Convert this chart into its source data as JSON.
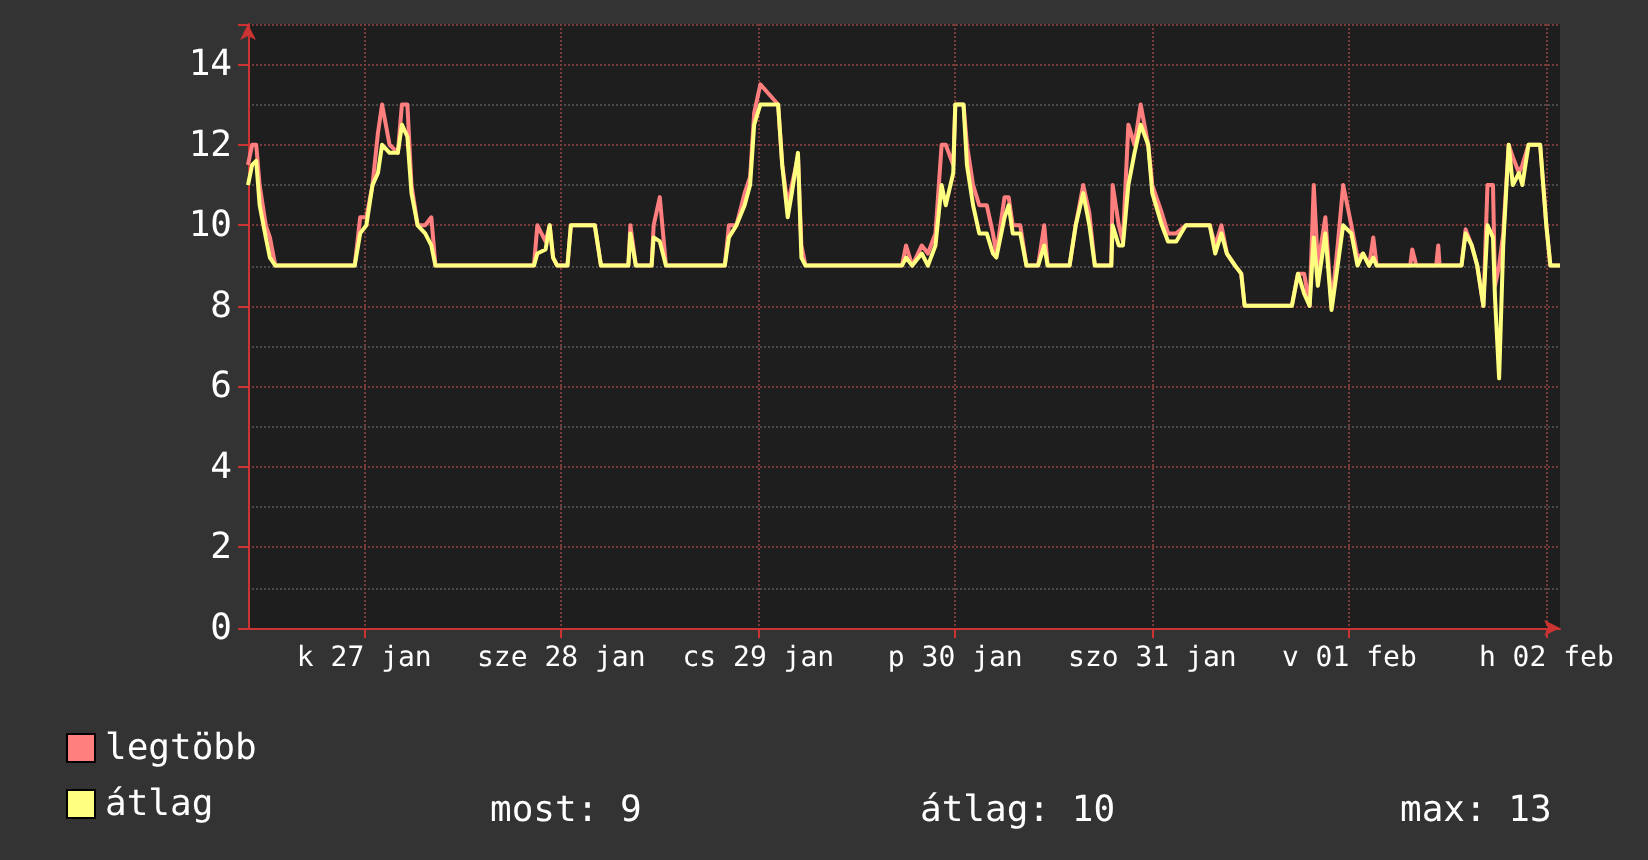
{
  "chart_data": {
    "type": "line",
    "legend": "bottom",
    "grid": true,
    "marker": "none",
    "line_style": "solid",
    "xlim": [
      "--01-26T09:50",
      "--02-02T01:40"
    ],
    "ylim": [
      0,
      15
    ],
    "yticks": [
      0,
      2,
      4,
      6,
      8,
      10,
      12,
      14
    ],
    "xticks": [
      {
        "value": "--01-27",
        "label": "k 27 jan"
      },
      {
        "value": "--01-28",
        "label": "sze 28 jan"
      },
      {
        "value": "--01-29",
        "label": "cs 29 jan"
      },
      {
        "value": "--01-30",
        "label": "p 30 jan"
      },
      {
        "value": "--01-31",
        "label": "szo 31 jan"
      },
      {
        "value": "--02-01",
        "label": "v 01 feb"
      },
      {
        "value": "--02-02",
        "label": "h 02 feb"
      }
    ],
    "x": [
      "--01-26T09:50",
      "--01-26T10:20",
      "--01-26T10:50",
      "--01-26T11:15",
      "--01-26T12:00",
      "--01-26T12:30",
      "--01-26T13:10",
      "--01-26T22:50",
      "--01-26T23:30",
      "--01-27T00:15",
      "--01-27T01:00",
      "--01-27T01:40",
      "--01-27T02:10",
      "--01-27T03:05",
      "--01-27T04:05",
      "--01-27T04:35",
      "--01-27T05:15",
      "--01-27T05:45",
      "--01-27T06:30",
      "--01-27T07:25",
      "--01-27T08:10",
      "--01-27T08:40",
      "--01-27T20:40",
      "--01-27T21:05",
      "--01-27T22:05",
      "--01-27T22:35",
      "--01-27T23:00",
      "--01-27T23:30",
      "--01-28T00:45",
      "--01-28T01:10",
      "--01-28T04:05",
      "--01-28T04:50",
      "--01-28T08:10",
      "--01-28T08:25",
      "--01-28T09:05",
      "--01-28T11:00",
      "--01-28T11:15",
      "--01-28T12:00",
      "--01-28T12:45",
      "--01-28T19:55",
      "--01-28T20:25",
      "--01-28T21:20",
      "--01-28T22:20",
      "--01-28T23:00",
      "--01-28T23:30",
      "--01-29T00:15",
      "--01-29T02:25",
      "--01-29T02:55",
      "--01-29T03:35",
      "--01-29T04:05",
      "--01-29T04:50",
      "--01-29T05:15",
      "--01-29T05:45",
      "--01-29T16:05",
      "--01-29T17:30",
      "--01-29T18:00",
      "--01-29T18:45",
      "--01-29T19:55",
      "--01-29T20:40",
      "--01-29T21:35",
      "--01-29T22:20",
      "--01-29T22:50",
      "--01-29T23:45",
      "--01-30T00:00",
      "--01-30T01:00",
      "--01-30T01:25",
      "--01-30T02:10",
      "--01-30T02:55",
      "--01-30T03:50",
      "--01-30T04:35",
      "--01-30T05:00",
      "--01-30T06:00",
      "--01-30T06:30",
      "--01-30T07:00",
      "--01-30T07:55",
      "--01-30T08:40",
      "--01-30T10:05",
      "--01-30T10:50",
      "--01-30T11:15",
      "--01-30T13:55",
      "--01-30T14:40",
      "--01-30T15:35",
      "--01-30T16:20",
      "--01-30T17:00",
      "--01-30T19:00",
      "--01-30T19:10",
      "--01-30T19:55",
      "--01-30T20:25",
      "--01-30T21:05",
      "--01-30T21:50",
      "--01-30T22:35",
      "--01-30T23:30",
      "--01-31T00:00",
      "--01-31T01:10",
      "--01-31T01:55",
      "--01-31T02:55",
      "--01-31T04:05",
      "--01-31T07:00",
      "--01-31T07:40",
      "--01-31T08:25",
      "--01-31T09:05",
      "--01-31T10:05",
      "--01-31T10:50",
      "--01-31T11:15",
      "--01-31T17:00",
      "--01-31T17:45",
      "--01-31T18:30",
      "--01-31T19:10",
      "--01-31T19:40",
      "--01-31T20:10",
      "--01-31T21:05",
      "--01-31T21:50",
      "--01-31T22:35",
      "--01-31T23:15",
      "--02-01T00:15",
      "--02-01T01:00",
      "--02-01T01:40",
      "--02-01T02:25",
      "--02-01T02:55",
      "--02-01T03:20",
      "--02-01T07:25",
      "--02-01T07:40",
      "--02-01T08:10",
      "--02-01T10:35",
      "--02-01T10:50",
      "--02-01T11:00",
      "--02-01T13:40",
      "--02-01T14:10",
      "--02-01T14:55",
      "--02-01T15:35",
      "--02-01T16:20",
      "--02-01T16:50",
      "--02-01T17:30",
      "--02-01T17:45",
      "--02-01T18:15",
      "--02-01T18:45",
      "--02-01T19:25",
      "--02-01T19:55",
      "--02-01T20:40",
      "--02-01T21:05",
      "--02-01T21:50",
      "--02-01T23:15",
      "--02-02T00:00",
      "--02-02T00:30",
      "--02-02T01:40"
    ],
    "series": [
      {
        "name": "legtöbb",
        "color": "#ff7f7f",
        "values": [
          11.5,
          12,
          12,
          11,
          10,
          9.7,
          9,
          9,
          10.2,
          10.2,
          11,
          12.3,
          13,
          12,
          11.8,
          13,
          13,
          11,
          10,
          10,
          10.2,
          9,
          9,
          10,
          9.6,
          10,
          9.2,
          9,
          9,
          10,
          10,
          9,
          9,
          10,
          9,
          9,
          10,
          10.7,
          9,
          9,
          10,
          10,
          10.8,
          11.2,
          12.8,
          13.5,
          13,
          11.5,
          10.5,
          11,
          11.7,
          9.5,
          9,
          9,
          9,
          9.5,
          9,
          9.5,
          9.3,
          9.8,
          12,
          12,
          11.5,
          13,
          13,
          12,
          11,
          10.5,
          10.5,
          9.8,
          9.3,
          10.7,
          10.7,
          10,
          10,
          9,
          9,
          10,
          9,
          9,
          10,
          11,
          10.3,
          9,
          9,
          11,
          10,
          9.6,
          12.5,
          12,
          13,
          12,
          11,
          10.3,
          9.8,
          9.8,
          10,
          10,
          9.5,
          10,
          9.3,
          9,
          8.8,
          8,
          8,
          8.8,
          8.8,
          8,
          11,
          9,
          10.2,
          8,
          9.5,
          11,
          10,
          9.2,
          9.3,
          9,
          9.7,
          9,
          9,
          9.4,
          9,
          9,
          9.5,
          9,
          9,
          9.9,
          9.5,
          9,
          8,
          11,
          11,
          8.5,
          9,
          9.8,
          12,
          11.7,
          11.3,
          11.5,
          12,
          12,
          10,
          9,
          9
        ]
      },
      {
        "name": "átlag",
        "color": "#ffff80",
        "values": [
          11,
          11.5,
          11.6,
          10.5,
          9.7,
          9.2,
          9,
          9,
          9.8,
          10,
          11,
          11.3,
          12,
          11.8,
          11.8,
          12.5,
          12.2,
          10.8,
          10,
          9.8,
          9.5,
          9,
          9,
          9.3,
          9.4,
          10,
          9.2,
          9,
          9,
          10,
          10,
          9,
          9,
          9.8,
          9,
          9,
          9.7,
          9.6,
          9,
          9,
          9.7,
          10,
          10.5,
          11,
          12.5,
          13,
          13,
          11.5,
          10.2,
          10.8,
          11.8,
          9.2,
          9,
          9,
          9,
          9.2,
          9,
          9.3,
          9,
          9.5,
          11,
          10.5,
          11.3,
          13,
          13,
          11.5,
          10.5,
          9.8,
          9.8,
          9.3,
          9.2,
          10.2,
          10.5,
          9.8,
          9.8,
          9,
          9,
          9.5,
          9,
          9,
          10,
          10.8,
          10,
          9,
          9,
          10,
          9.5,
          9.5,
          11,
          11.8,
          12.5,
          12,
          10.8,
          10,
          9.6,
          9.6,
          10,
          10,
          9.3,
          9.8,
          9.3,
          9,
          8.8,
          8,
          8,
          8.8,
          8.3,
          8,
          9.7,
          8.5,
          9.8,
          7.9,
          9,
          10,
          9.8,
          9,
          9.3,
          9,
          9.2,
          9,
          9,
          9,
          9,
          9,
          9,
          9,
          9,
          9.8,
          9.5,
          9,
          8,
          10,
          9.7,
          8.2,
          6.2,
          9.5,
          12,
          11,
          11.3,
          11,
          12,
          12,
          10,
          9,
          9
        ]
      }
    ],
    "annotations": [
      "most: 9",
      "átlag: 10",
      "max: 13"
    ]
  }
}
